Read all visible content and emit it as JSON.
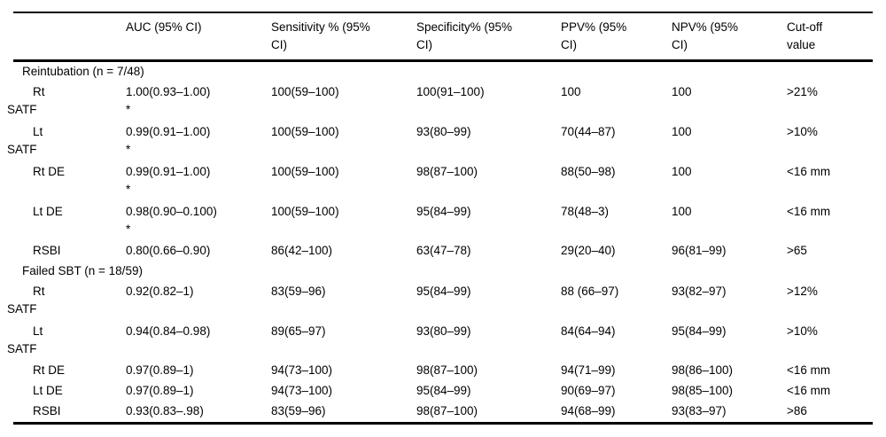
{
  "page": {
    "background_color": "#ffffff",
    "text_color": "#000000",
    "rule_color": "#000000"
  },
  "table": {
    "headers": [
      {
        "line1": "",
        "line2": ""
      },
      {
        "line1": "AUC (95% CI)",
        "line2": ""
      },
      {
        "line1": "Sensitivity % (95%",
        "line2": "CI)"
      },
      {
        "line1": "Specificity% (95%",
        "line2": "CI)"
      },
      {
        "line1": "PPV% (95%",
        "line2": "CI)"
      },
      {
        "line1": "NPV% (95%",
        "line2": "CI)"
      },
      {
        "line1": "Cut-off",
        "line2": "value"
      }
    ],
    "sections": [
      {
        "title": "Reintubation (n = 7/48)",
        "rows": [
          {
            "label_line1": "Rt",
            "label_line2": "SATF",
            "auc": "1.00(0.93–1.00)",
            "auc_footnote": "*",
            "sensitivity": "100(59–100)",
            "specificity": "100(91–100)",
            "ppv": "100",
            "npv": "100",
            "cutoff": ">21%"
          },
          {
            "label_line1": "Lt",
            "label_line2": "SATF",
            "auc": "0.99(0.91–1.00)",
            "auc_footnote": "*",
            "sensitivity": "100(59–100)",
            "specificity": "93(80–99)",
            "ppv": "70(44–87)",
            "npv": "100",
            "cutoff": ">10%"
          },
          {
            "label_line1": "Rt DE",
            "label_line2": "",
            "auc": "0.99(0.91–1.00)",
            "auc_footnote": "*",
            "sensitivity": "100(59–100)",
            "specificity": "98(87–100)",
            "ppv": "88(50–98)",
            "npv": "100",
            "cutoff": "<16 mm"
          },
          {
            "label_line1": "Lt DE",
            "label_line2": "",
            "auc": "0.98(0.90–0.100)",
            "auc_footnote": "*",
            "sensitivity": "100(59–100)",
            "specificity": "95(84–99)",
            "ppv": "78(48–3)",
            "npv": "100",
            "cutoff": "<16 mm"
          },
          {
            "label_line1": "RSBI",
            "label_line2": "",
            "auc": "0.80(0.66–0.90)",
            "auc_footnote": "",
            "sensitivity": "86(42–100)",
            "specificity": "63(47–78)",
            "ppv": "29(20–40)",
            "npv": "96(81–99)",
            "cutoff": ">65"
          }
        ]
      },
      {
        "title": "Failed SBT (n = 18/59)",
        "rows": [
          {
            "label_line1": "Rt",
            "label_line2": "SATF",
            "auc": "0.92(0.82–1)",
            "auc_footnote": "",
            "sensitivity": "83(59–96)",
            "specificity": "95(84–99)",
            "ppv": "88 (66–97)",
            "npv": "93(82–97)",
            "cutoff": ">12%"
          },
          {
            "label_line1": "Lt",
            "label_line2": "SATF",
            "auc": "0.94(0.84–0.98)",
            "auc_footnote": "",
            "sensitivity": "89(65–97)",
            "specificity": "93(80–99)",
            "ppv": "84(64–94)",
            "npv": "95(84–99)",
            "cutoff": ">10%"
          },
          {
            "label_line1": "Rt DE",
            "label_line2": "",
            "auc": "0.97(0.89–1)",
            "auc_footnote": "",
            "sensitivity": "94(73–100)",
            "specificity": "98(87–100)",
            "ppv": "94(71–99)",
            "npv": "98(86–100)",
            "cutoff": "<16 mm"
          },
          {
            "label_line1": "Lt DE",
            "label_line2": "",
            "auc": "0.97(0.89–1)",
            "auc_footnote": "",
            "sensitivity": "94(73–100)",
            "specificity": "95(84–99)",
            "ppv": "90(69–97)",
            "npv": "98(85–100)",
            "cutoff": "<16 mm"
          },
          {
            "label_line1": "RSBI",
            "label_line2": "",
            "auc": "0.93(0.83–.98)",
            "auc_footnote": "",
            "sensitivity": "83(59–96)",
            "specificity": "98(87–100)",
            "ppv": "94(68–99)",
            "npv": "93(83–97)",
            "cutoff": ">86"
          }
        ]
      }
    ]
  }
}
